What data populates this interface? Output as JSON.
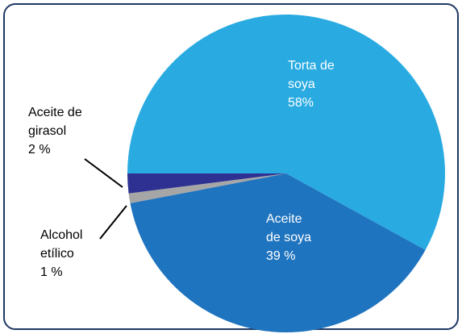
{
  "chart_data": {
    "type": "pie",
    "categories": [
      "Torta de soya",
      "Aceite de soya",
      "Alcohol etílico",
      "Aceite de girasol"
    ],
    "values": [
      58,
      39,
      1,
      2
    ],
    "value_labels": [
      "58%",
      "39 %",
      "1 %",
      "2 %"
    ],
    "colors": [
      "#29abe2",
      "#1f74bf",
      "#a6a6a6",
      "#2e3192"
    ]
  }
}
